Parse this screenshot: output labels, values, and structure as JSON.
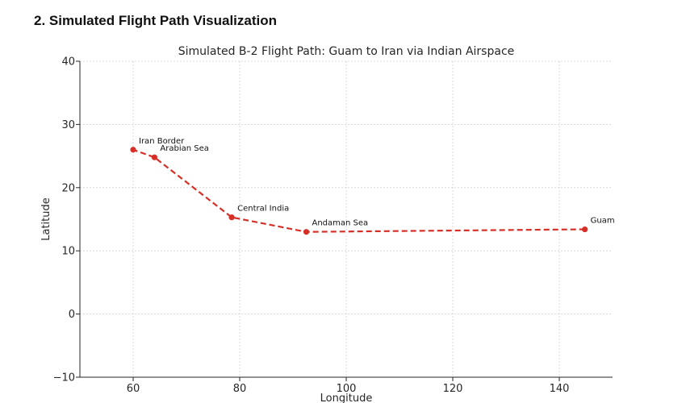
{
  "page": {
    "section_heading": "2. Simulated Flight Path Visualization"
  },
  "chart_data": {
    "type": "line",
    "title": "Simulated B-2 Flight Path: Guam to Iran via Indian Airspace",
    "xlabel": "Longitude",
    "ylabel": "Latitude",
    "xlim": [
      50,
      150
    ],
    "ylim": [
      -10,
      40
    ],
    "x_ticks": [
      60,
      80,
      100,
      120,
      140
    ],
    "y_ticks": [
      -10,
      0,
      10,
      20,
      30,
      40
    ],
    "x_tick_labels": [
      "60",
      "80",
      "100",
      "120",
      "140"
    ],
    "y_tick_labels": [
      "−10",
      "0",
      "10",
      "20",
      "30",
      "40"
    ],
    "grid": true,
    "line_style": "dashed",
    "marker": "circle",
    "series_color": "#d62f27",
    "points": [
      {
        "label": "Guam",
        "x": 144.8,
        "y": 13.4
      },
      {
        "label": "Andaman Sea",
        "x": 92.5,
        "y": 13.0
      },
      {
        "label": "Central India",
        "x": 78.5,
        "y": 15.3
      },
      {
        "label": "Arabian Sea",
        "x": 64.0,
        "y": 24.8
      },
      {
        "label": "Iran Border",
        "x": 60.0,
        "y": 26.0
      }
    ]
  }
}
